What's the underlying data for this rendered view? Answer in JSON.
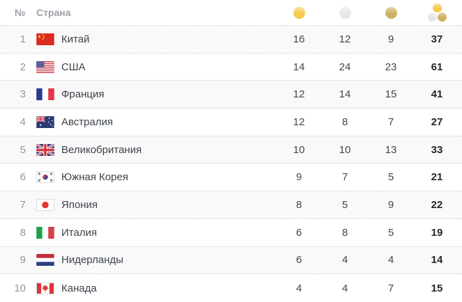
{
  "table": {
    "header": {
      "number_label": "№",
      "country_label": "Страна",
      "icons": {
        "gold": "gold-medal-icon",
        "silver": "silver-medal-icon",
        "bronze": "bronze-medal-icon",
        "total": "all-medals-icon"
      }
    },
    "medal_colors": {
      "gold": "#f6c94a",
      "silver": "#e6e6e9",
      "bronze": "#cbb05e"
    },
    "style_colors": {
      "odd_row_background": "#f9f9f9",
      "separator": "#cdcdcd",
      "header_text": "#9ba1a9",
      "total_text": "#23262b"
    },
    "rows": [
      {
        "rank": 1,
        "country": "Китай",
        "flag": "cn",
        "gold": 16,
        "silver": 12,
        "bronze": 9,
        "total": 37
      },
      {
        "rank": 2,
        "country": "США",
        "flag": "us",
        "gold": 14,
        "silver": 24,
        "bronze": 23,
        "total": 61
      },
      {
        "rank": 3,
        "country": "Франция",
        "flag": "fr",
        "gold": 12,
        "silver": 14,
        "bronze": 15,
        "total": 41
      },
      {
        "rank": 4,
        "country": "Австралия",
        "flag": "au",
        "gold": 12,
        "silver": 8,
        "bronze": 7,
        "total": 27
      },
      {
        "rank": 5,
        "country": "Великобритания",
        "flag": "gb",
        "gold": 10,
        "silver": 10,
        "bronze": 13,
        "total": 33
      },
      {
        "rank": 6,
        "country": "Южная Корея",
        "flag": "kr",
        "gold": 9,
        "silver": 7,
        "bronze": 5,
        "total": 21
      },
      {
        "rank": 7,
        "country": "Япония",
        "flag": "jp",
        "gold": 8,
        "silver": 5,
        "bronze": 9,
        "total": 22
      },
      {
        "rank": 8,
        "country": "Италия",
        "flag": "it",
        "gold": 6,
        "silver": 8,
        "bronze": 5,
        "total": 19
      },
      {
        "rank": 9,
        "country": "Нидерланды",
        "flag": "nl",
        "gold": 6,
        "silver": 4,
        "bronze": 4,
        "total": 14
      },
      {
        "rank": 10,
        "country": "Канада",
        "flag": "ca",
        "gold": 4,
        "silver": 4,
        "bronze": 7,
        "total": 15
      }
    ]
  }
}
